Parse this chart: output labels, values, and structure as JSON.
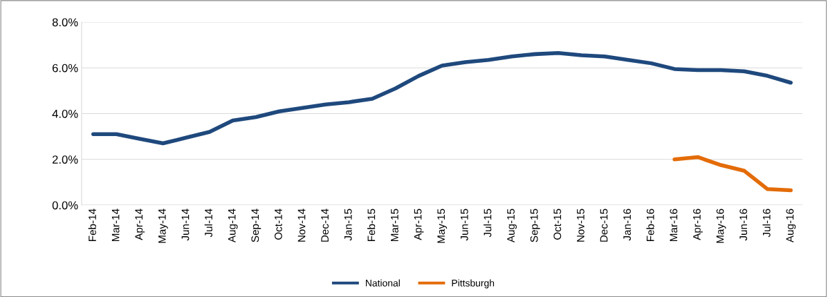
{
  "chart_data": {
    "type": "line",
    "categories": [
      "Feb-14",
      "Mar-14",
      "Apr-14",
      "May-14",
      "Jun-14",
      "Jul-14",
      "Aug-14",
      "Sep-14",
      "Oct-14",
      "Nov-14",
      "Dec-14",
      "Jan-15",
      "Feb-15",
      "Mar-15",
      "Apr-15",
      "May-15",
      "Jun-15",
      "Jul-15",
      "Aug-15",
      "Sep-15",
      "Oct-15",
      "Nov-15",
      "Dec-15",
      "Jan-16",
      "Feb-16",
      "Mar-16",
      "Apr-16",
      "May-16",
      "Jun-16",
      "Jul-16",
      "Aug-16"
    ],
    "series": [
      {
        "name": "National",
        "color": "#1f497d",
        "values": [
          3.1,
          3.1,
          2.9,
          2.7,
          2.95,
          3.2,
          3.7,
          3.85,
          4.1,
          4.25,
          4.4,
          4.5,
          4.65,
          5.1,
          5.65,
          6.1,
          6.25,
          6.35,
          6.5,
          6.6,
          6.65,
          6.55,
          6.5,
          6.35,
          6.2,
          5.95,
          5.9,
          5.9,
          5.85,
          5.65,
          5.35
        ]
      },
      {
        "name": "Pittsburgh",
        "color": "#e36c09",
        "values": [
          null,
          null,
          null,
          null,
          null,
          null,
          null,
          null,
          null,
          null,
          null,
          null,
          null,
          null,
          null,
          null,
          null,
          null,
          null,
          null,
          null,
          null,
          null,
          null,
          null,
          2.0,
          2.1,
          1.75,
          1.5,
          0.7,
          0.65
        ]
      }
    ],
    "ylim": [
      0,
      8
    ],
    "yticks": [
      {
        "value": 0,
        "label": "0.0%"
      },
      {
        "value": 2,
        "label": "2.0%"
      },
      {
        "value": 4,
        "label": "4.0%"
      },
      {
        "value": 6,
        "label": "6.0%"
      },
      {
        "value": 8,
        "label": "8.0%"
      }
    ],
    "grid": "y",
    "legend": "bottom",
    "marker": "none",
    "line_style": "solid"
  }
}
